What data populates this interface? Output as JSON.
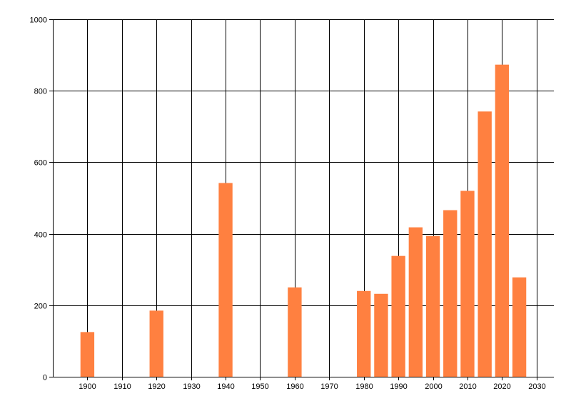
{
  "chart_data": {
    "type": "bar",
    "title": "",
    "xlabel": "",
    "ylabel": "",
    "x": [
      1900,
      1920,
      1940,
      1960,
      1980,
      1985,
      1990,
      1995,
      2000,
      2005,
      2010,
      2015,
      2020,
      2025
    ],
    "values": [
      125,
      185,
      542,
      250,
      240,
      232,
      338,
      418,
      394,
      466,
      520,
      742,
      873,
      278
    ],
    "xlim": [
      1890,
      2035
    ],
    "ylim": [
      0,
      1000
    ],
    "xticks": [
      1900,
      1910,
      1920,
      1930,
      1940,
      1950,
      1960,
      1970,
      1980,
      1990,
      2000,
      2010,
      2020,
      2030
    ],
    "yticks": [
      0,
      200,
      400,
      600,
      800,
      1000
    ],
    "grid": true,
    "bar_color": "#ff8040",
    "grid_color": "#000000"
  }
}
